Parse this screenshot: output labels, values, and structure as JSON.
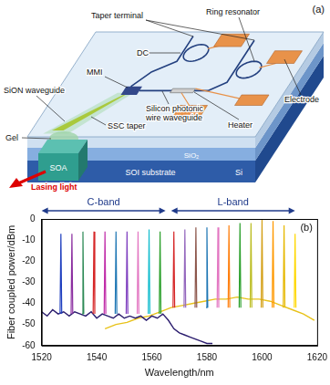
{
  "diagram": {
    "panel_label": "(a)",
    "labels": {
      "taper_terminal": "Taper terminal",
      "dc": "DC",
      "ring_resonator": "Ring resonator",
      "electrode": "Electrode",
      "sion_waveguide": "SiON waveguide",
      "mmi": "MMI",
      "ssc_taper": "SSC taper",
      "silicon_wire_waveguide": [
        "Silicon photonic",
        "wire waveguide"
      ],
      "heater": "Heater",
      "gel": "Gel",
      "soa": "SOA",
      "sio2": "SiO₂",
      "soi_substrate": "SOI substrate",
      "si": "Si",
      "lasing_light": "Lasing light"
    }
  },
  "chart_data": {
    "type": "line",
    "panel_label": "(b)",
    "x_label": "Wavelength/nm",
    "y_label": "Fiber coupled power/dBm",
    "xlim": [
      1520,
      1620
    ],
    "xticks": [
      1520,
      1540,
      1560,
      1580,
      1600,
      1620
    ],
    "ylim": [
      -60,
      0
    ],
    "yticks": [
      -60,
      -50,
      -40,
      -30,
      -20,
      -10,
      0
    ],
    "grid": false,
    "annotations": [
      {
        "text": "C-band",
        "x": [
          1520,
          1565
        ]
      },
      {
        "text": "L-band",
        "x": [
          1567,
          1612
        ]
      }
    ],
    "series": [
      {
        "color": "#1f3fbf",
        "x": [
          1526.7,
          1527,
          1527.3
        ],
        "values": [
          -45,
          -7,
          -45
        ]
      },
      {
        "color": "#8b2ea0",
        "x": [
          1530.7,
          1531,
          1531.3
        ],
        "values": [
          -45,
          -7,
          -45
        ]
      },
      {
        "color": "#2e8b57",
        "x": [
          1534.7,
          1535,
          1535.3
        ],
        "values": [
          -45,
          -6,
          -45
        ]
      },
      {
        "color": "#d62728",
        "x": [
          1538.7,
          1539,
          1539.3
        ],
        "values": [
          -45,
          -6,
          -45
        ]
      },
      {
        "color": "#c02ca8",
        "x": [
          1542.7,
          1543,
          1543.3
        ],
        "values": [
          -45,
          -6,
          -45
        ]
      },
      {
        "color": "#1f77b4",
        "x": [
          1546.7,
          1547,
          1547.3
        ],
        "values": [
          -45,
          -6,
          -45
        ]
      },
      {
        "color": "#7f3fbf",
        "x": [
          1550.7,
          1551,
          1551.3
        ],
        "values": [
          -45,
          -6,
          -45
        ]
      },
      {
        "color": "#e377c2",
        "x": [
          1554.7,
          1555,
          1555.3
        ],
        "values": [
          -45,
          -6,
          -45
        ]
      },
      {
        "color": "#17becf",
        "x": [
          1558.7,
          1559,
          1559.3
        ],
        "values": [
          -45,
          -5,
          -45
        ]
      },
      {
        "color": "#2ca02c",
        "x": [
          1562.7,
          1563,
          1563.3
        ],
        "values": [
          -45,
          -6,
          -45
        ]
      },
      {
        "color": "#d62728",
        "x": [
          1567.7,
          1568,
          1568.3
        ],
        "values": [
          -42,
          -6,
          -42
        ]
      },
      {
        "color": "#9467bd",
        "x": [
          1571.7,
          1572,
          1572.3
        ],
        "values": [
          -42,
          -5,
          -42
        ]
      },
      {
        "color": "#8c564b",
        "x": [
          1575.7,
          1576,
          1576.3
        ],
        "values": [
          -42,
          -4,
          -42
        ]
      },
      {
        "color": "#1f77b4",
        "x": [
          1579.7,
          1580,
          1580.3
        ],
        "values": [
          -42,
          -4,
          -42
        ]
      },
      {
        "color": "#e377c2",
        "x": [
          1583.7,
          1584,
          1584.3
        ],
        "values": [
          -42,
          -4,
          -42
        ]
      },
      {
        "color": "#ff7f0e",
        "x": [
          1587.7,
          1588,
          1588.3
        ],
        "values": [
          -42,
          -3,
          -42
        ]
      },
      {
        "color": "#2ca02c",
        "x": [
          1591.7,
          1592,
          1592.3
        ],
        "values": [
          -42,
          -2,
          -42
        ]
      },
      {
        "color": "#bcbd22",
        "x": [
          1595.7,
          1596,
          1596.3
        ],
        "values": [
          -42,
          -2,
          -42
        ]
      },
      {
        "color": "#d4a017",
        "x": [
          1599.7,
          1600,
          1600.3
        ],
        "values": [
          -42,
          0,
          -42
        ]
      },
      {
        "color": "#ff9900",
        "x": [
          1603.7,
          1604,
          1604.3
        ],
        "values": [
          -42,
          -1,
          -42
        ]
      },
      {
        "color": "#e6b800",
        "x": [
          1607.7,
          1608,
          1608.3
        ],
        "values": [
          -42,
          -3,
          -42
        ]
      },
      {
        "color": "#ffd700",
        "x": [
          1611.7,
          1612,
          1612.3
        ],
        "values": [
          -42,
          -7,
          -42
        ]
      },
      {
        "color": "#2b1d6e",
        "x": [
          1520,
          1522,
          1524,
          1526,
          1528,
          1530,
          1532,
          1534,
          1536,
          1538,
          1540,
          1542,
          1544,
          1546,
          1548,
          1550,
          1552,
          1554,
          1556,
          1558,
          1560,
          1562,
          1564,
          1566,
          1568,
          1570,
          1572,
          1574,
          1576,
          1578,
          1580,
          1582
        ],
        "values": [
          -44,
          -46,
          -43,
          -45,
          -44,
          -46,
          -44,
          -45,
          -46,
          -44,
          -47,
          -45,
          -46,
          -47,
          -45,
          -47,
          -46,
          -47,
          -46,
          -48,
          -46,
          -47,
          -45,
          -48,
          -52,
          -54,
          -55,
          -56,
          -57,
          -58,
          -59,
          -59
        ]
      },
      {
        "color": "#e8c21a",
        "x": [
          1543,
          1547,
          1551,
          1555,
          1559,
          1563,
          1567,
          1571,
          1575,
          1579,
          1583,
          1587,
          1591,
          1595,
          1599,
          1603,
          1607,
          1611,
          1615,
          1619
        ],
        "values": [
          -52,
          -50,
          -49,
          -47,
          -46,
          -44,
          -42,
          -41,
          -40,
          -39,
          -38,
          -38,
          -37,
          -38,
          -38,
          -39,
          -41,
          -43,
          -45,
          -48
        ]
      }
    ]
  }
}
